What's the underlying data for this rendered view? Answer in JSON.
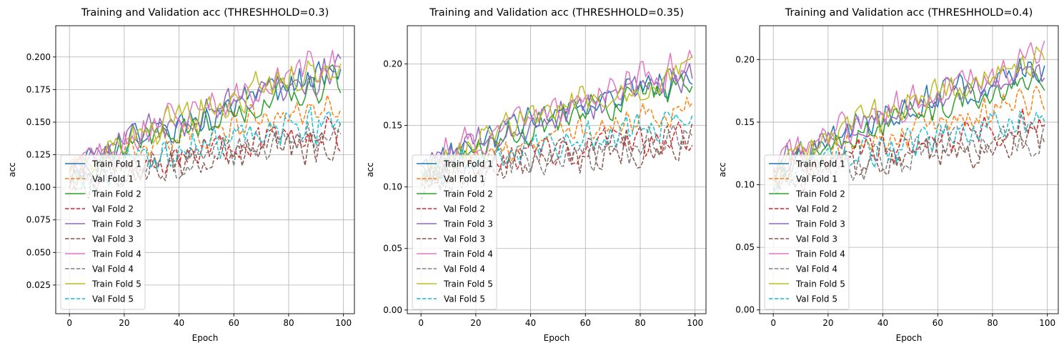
{
  "chart_data": [
    {
      "type": "line",
      "title": "Training and Validation acc (THRESHHOLD=0.3)",
      "xlabel": "Epoch",
      "ylabel": "acc",
      "xlim": [
        -5,
        104
      ],
      "ylim": [
        0.003,
        0.224
      ],
      "xticks": [
        0,
        20,
        40,
        60,
        80,
        100
      ],
      "yticks": [
        0.025,
        0.05,
        0.075,
        0.1,
        0.125,
        0.15,
        0.175,
        0.2
      ],
      "ytick_labels": [
        "0.025",
        "0.050",
        "0.075",
        "0.100",
        "0.125",
        "0.150",
        "0.175",
        "0.200"
      ],
      "grid": true,
      "legend_position": "lower-left",
      "series": [
        {
          "name": "Train Fold 1",
          "color": "#1f77b4",
          "dash": "solid",
          "start": 0.11,
          "end": 0.188,
          "amp": 0.016,
          "seed": 1
        },
        {
          "name": "Val Fold 1",
          "color": "#ff7f0e",
          "dash": "dashed",
          "start": 0.108,
          "end": 0.165,
          "amp": 0.015,
          "seed": 2
        },
        {
          "name": "Train Fold 2",
          "color": "#2ca02c",
          "dash": "solid",
          "start": 0.108,
          "end": 0.182,
          "amp": 0.015,
          "seed": 3
        },
        {
          "name": "Val Fold 2",
          "color": "#d62728",
          "dash": "dashed",
          "start": 0.104,
          "end": 0.142,
          "amp": 0.016,
          "seed": 4
        },
        {
          "name": "Train Fold 3",
          "color": "#9467bd",
          "dash": "solid",
          "start": 0.112,
          "end": 0.19,
          "amp": 0.015,
          "seed": 5
        },
        {
          "name": "Val Fold 3",
          "color": "#8c564b",
          "dash": "dashed",
          "start": 0.1,
          "end": 0.136,
          "amp": 0.018,
          "seed": 6
        },
        {
          "name": "Train Fold 4",
          "color": "#e377c2",
          "dash": "solid",
          "start": 0.11,
          "end": 0.197,
          "amp": 0.017,
          "seed": 7
        },
        {
          "name": "Val Fold 4",
          "color": "#7f7f7f",
          "dash": "dashed",
          "start": 0.102,
          "end": 0.14,
          "amp": 0.018,
          "seed": 8
        },
        {
          "name": "Train Fold 5",
          "color": "#bcbd22",
          "dash": "solid",
          "start": 0.11,
          "end": 0.194,
          "amp": 0.016,
          "seed": 9
        },
        {
          "name": "Val Fold 5",
          "color": "#17becf",
          "dash": "dashed",
          "start": 0.104,
          "end": 0.152,
          "amp": 0.017,
          "seed": 10
        }
      ]
    },
    {
      "type": "line",
      "title": "Training and Validation acc (THRESHHOLD=0.35)",
      "xlabel": "Epoch",
      "ylabel": "acc",
      "xlim": [
        -5,
        104
      ],
      "ylim": [
        -0.003,
        0.231
      ],
      "xticks": [
        0,
        20,
        40,
        60,
        80,
        100
      ],
      "yticks": [
        0.0,
        0.05,
        0.1,
        0.15,
        0.2
      ],
      "ytick_labels": [
        "0.00",
        "0.05",
        "0.10",
        "0.15",
        "0.20"
      ],
      "grid": true,
      "legend_position": "lower-left",
      "series": [
        {
          "name": "Train Fold 1",
          "color": "#1f77b4",
          "dash": "solid",
          "start": 0.11,
          "end": 0.192,
          "amp": 0.016,
          "seed": 11
        },
        {
          "name": "Val Fold 1",
          "color": "#ff7f0e",
          "dash": "dashed",
          "start": 0.108,
          "end": 0.166,
          "amp": 0.015,
          "seed": 12
        },
        {
          "name": "Train Fold 2",
          "color": "#2ca02c",
          "dash": "solid",
          "start": 0.108,
          "end": 0.184,
          "amp": 0.015,
          "seed": 13
        },
        {
          "name": "Val Fold 2",
          "color": "#d62728",
          "dash": "dashed",
          "start": 0.104,
          "end": 0.144,
          "amp": 0.016,
          "seed": 14
        },
        {
          "name": "Train Fold 3",
          "color": "#9467bd",
          "dash": "solid",
          "start": 0.112,
          "end": 0.19,
          "amp": 0.015,
          "seed": 15
        },
        {
          "name": "Val Fold 3",
          "color": "#8c564b",
          "dash": "dashed",
          "start": 0.1,
          "end": 0.138,
          "amp": 0.018,
          "seed": 16
        },
        {
          "name": "Train Fold 4",
          "color": "#e377c2",
          "dash": "solid",
          "start": 0.112,
          "end": 0.2,
          "amp": 0.017,
          "seed": 17
        },
        {
          "name": "Val Fold 4",
          "color": "#7f7f7f",
          "dash": "dashed",
          "start": 0.102,
          "end": 0.142,
          "amp": 0.018,
          "seed": 18
        },
        {
          "name": "Train Fold 5",
          "color": "#bcbd22",
          "dash": "solid",
          "start": 0.11,
          "end": 0.196,
          "amp": 0.016,
          "seed": 19
        },
        {
          "name": "Val Fold 5",
          "color": "#17becf",
          "dash": "dashed",
          "start": 0.104,
          "end": 0.154,
          "amp": 0.017,
          "seed": 20
        }
      ]
    },
    {
      "type": "line",
      "title": "Training and Validation acc (THRESHHOLD=0.4)",
      "xlabel": "Epoch",
      "ylabel": "acc",
      "xlim": [
        -5,
        104
      ],
      "ylim": [
        -0.003,
        0.227
      ],
      "xticks": [
        0,
        20,
        40,
        60,
        80,
        100
      ],
      "yticks": [
        0.0,
        0.05,
        0.1,
        0.15,
        0.2
      ],
      "ytick_labels": [
        "0.00",
        "0.05",
        "0.10",
        "0.15",
        "0.20"
      ],
      "grid": true,
      "legend_position": "lower-left",
      "series": [
        {
          "name": "Train Fold 1",
          "color": "#1f77b4",
          "dash": "solid",
          "start": 0.11,
          "end": 0.196,
          "amp": 0.016,
          "seed": 21
        },
        {
          "name": "Val Fold 1",
          "color": "#ff7f0e",
          "dash": "dashed",
          "start": 0.108,
          "end": 0.168,
          "amp": 0.015,
          "seed": 22
        },
        {
          "name": "Train Fold 2",
          "color": "#2ca02c",
          "dash": "solid",
          "start": 0.108,
          "end": 0.188,
          "amp": 0.015,
          "seed": 23
        },
        {
          "name": "Val Fold 2",
          "color": "#d62728",
          "dash": "dashed",
          "start": 0.104,
          "end": 0.15,
          "amp": 0.016,
          "seed": 24
        },
        {
          "name": "Train Fold 3",
          "color": "#9467bd",
          "dash": "solid",
          "start": 0.112,
          "end": 0.192,
          "amp": 0.015,
          "seed": 25
        },
        {
          "name": "Val Fold 3",
          "color": "#8c564b",
          "dash": "dashed",
          "start": 0.1,
          "end": 0.136,
          "amp": 0.018,
          "seed": 26
        },
        {
          "name": "Train Fold 4",
          "color": "#e377c2",
          "dash": "solid",
          "start": 0.112,
          "end": 0.202,
          "amp": 0.017,
          "seed": 27
        },
        {
          "name": "Val Fold 4",
          "color": "#7f7f7f",
          "dash": "dashed",
          "start": 0.102,
          "end": 0.14,
          "amp": 0.018,
          "seed": 28
        },
        {
          "name": "Train Fold 5",
          "color": "#bcbd22",
          "dash": "solid",
          "start": 0.11,
          "end": 0.2,
          "amp": 0.016,
          "seed": 29
        },
        {
          "name": "Val Fold 5",
          "color": "#17becf",
          "dash": "dashed",
          "start": 0.104,
          "end": 0.156,
          "amp": 0.017,
          "seed": 30
        }
      ]
    }
  ]
}
